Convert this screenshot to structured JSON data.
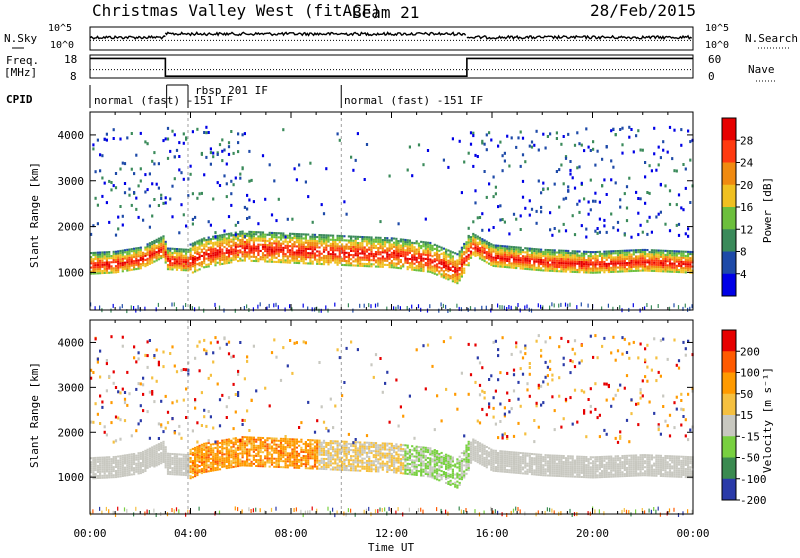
{
  "header": {
    "station": "Christmas Valley West (fitACF)",
    "beam": "Beam 21",
    "date": "28/Feb/2015"
  },
  "noise_panel": {
    "left_label": "N.Sky",
    "right_label": "N.Search",
    "ticks": [
      "10^5",
      "10^0"
    ]
  },
  "freq_panel": {
    "left_label_line1": "Freq.",
    "left_label_line2": "[MHz]",
    "left_ticks": [
      "18",
      "8"
    ],
    "right_label": "Nave",
    "right_ticks": [
      "60",
      "0"
    ]
  },
  "cpid_panel": {
    "label": "CPID",
    "modes": [
      "normal (fast) -151 IF",
      "rbsp 201 IF",
      "normal (fast) -151 IF"
    ]
  },
  "power_panel": {
    "ylabel": "Slant Range [km]",
    "cbar_label": "Power [dB]",
    "cbar_ticks": [
      "28",
      "24",
      "20",
      "16",
      "12",
      "8",
      "4"
    ]
  },
  "velocity_panel": {
    "ylabel": "Slant Range [km]",
    "cbar_label": "Velocity [m s⁻¹]",
    "cbar_ticks": [
      "200",
      "100",
      "50",
      "15",
      "-15",
      "-50",
      "-100",
      "-200"
    ]
  },
  "xaxis": {
    "label": "Time UT",
    "ticks": [
      "00:00",
      "04:00",
      "08:00",
      "12:00",
      "16:00",
      "20:00",
      "00:00"
    ]
  },
  "colors": {
    "power_scale": [
      "#0000e6",
      "#1e4aa8",
      "#3a8a5a",
      "#6cbf3c",
      "#f0c020",
      "#f08a10",
      "#ff3a10",
      "#e60000"
    ],
    "velocity_scale": [
      "#e60000",
      "#ff5a00",
      "#ff9a00",
      "#f5c040",
      "#c8c8c0",
      "#78d040",
      "#3a8a50",
      "#2a3aa8"
    ],
    "ground_scatter": "#c8c8c0"
  },
  "chart_data": {
    "type": "heatmap",
    "x_range_hours": [
      0,
      24
    ],
    "y_range_km": [
      180,
      4500
    ],
    "y_ticks_km": [
      1000,
      2000,
      3000,
      4000
    ],
    "noise": {
      "ylim": [
        1,
        100000
      ],
      "scale": "log",
      "segments": [
        {
          "start_h": 0,
          "end_h": 3,
          "level": 0.55
        },
        {
          "start_h": 3,
          "end_h": 15,
          "level": 0.7
        },
        {
          "start_h": 15,
          "end_h": 24,
          "level": 0.55
        }
      ]
    },
    "frequency_mhz": {
      "ylim": [
        8,
        18
      ],
      "segments": [
        {
          "start_h": 0,
          "end_h": 3,
          "value": 16.5
        },
        {
          "start_h": 3,
          "end_h": 15,
          "value": 8.8
        },
        {
          "start_h": 15,
          "end_h": 24,
          "value": 16.5
        }
      ]
    },
    "nave": {
      "ylim": [
        0,
        60
      ],
      "value": 22
    },
    "cpid_boundaries_h": [
      3.05,
      3.9,
      10.0
    ],
    "main_echo_band": {
      "description_points_h": [
        0,
        1,
        2,
        2.9,
        3.05,
        3.9,
        4.5,
        6,
        8,
        10,
        12,
        13.5,
        14.6,
        15.2,
        16,
        18,
        20,
        22,
        24
      ],
      "range_km": [
        1130,
        1160,
        1250,
        1500,
        1230,
        1200,
        1350,
        1500,
        1450,
        1400,
        1350,
        1250,
        1000,
        1550,
        1300,
        1200,
        1150,
        1200,
        1150
      ]
    },
    "power_db_range": [
      0,
      30
    ],
    "velocity_ms_range": [
      -200,
      200
    ]
  }
}
